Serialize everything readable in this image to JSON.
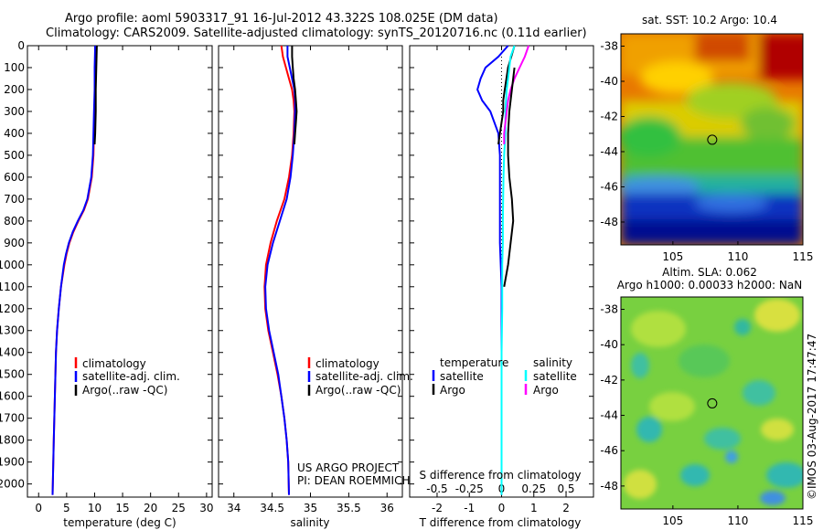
{
  "header": {
    "line1": "Argo profile: aoml 5903317_91 16-Jul-2012 43.322S 108.025E (DM data)",
    "line2": "Climatology: CARS2009. Satellite-adjusted climatology: synTS_20120716.nc (0.11d earlier)"
  },
  "colors": {
    "climatology": "#ff0000",
    "satellite": "#0000ff",
    "argo": "#000000",
    "s_satellite": "#00ffff",
    "s_argo": "#ff00ff"
  },
  "chart_data": [
    {
      "id": "temperature",
      "type": "line",
      "xlabel": "temperature (deg C)",
      "ylim": [
        2060,
        0
      ],
      "xlim": [
        -2,
        31
      ],
      "x_ticks": [
        "0",
        "5",
        "10",
        "15",
        "20",
        "25",
        "30"
      ],
      "y_ticks": [
        "0",
        "100",
        "200",
        "300",
        "400",
        "500",
        "600",
        "700",
        "800",
        "900",
        "1000",
        "1100",
        "1200",
        "1300",
        "1400",
        "1500",
        "1600",
        "1700",
        "1800",
        "1900",
        "2000"
      ],
      "legend": [
        "climatology",
        "satellite-adj. clim.",
        "Argo(..raw -QC)"
      ],
      "series": [
        {
          "name": "climatology",
          "color": "#ff0000",
          "depth": [
            0,
            100,
            200,
            300,
            400,
            500,
            600,
            700,
            750,
            800,
            850,
            900,
            950,
            1000,
            1100,
            1200,
            1300,
            1400,
            1500,
            1600,
            1800,
            2050
          ],
          "values": [
            10.3,
            10.2,
            10.1,
            10.0,
            9.9,
            9.8,
            9.5,
            8.8,
            8.1,
            7.1,
            6.2,
            5.5,
            5.0,
            4.6,
            4.0,
            3.6,
            3.3,
            3.1,
            3.0,
            2.9,
            2.7,
            2.5
          ]
        },
        {
          "name": "satellite-adj. clim.",
          "color": "#0000ff",
          "depth": [
            0,
            100,
            200,
            300,
            400,
            500,
            600,
            700,
            750,
            800,
            850,
            900,
            950,
            1000,
            1100,
            1200,
            1300,
            1400,
            1500,
            1600,
            1800,
            2050
          ],
          "values": [
            10.1,
            10.0,
            10.0,
            9.9,
            9.8,
            9.7,
            9.4,
            8.7,
            8.0,
            7.0,
            6.1,
            5.4,
            4.9,
            4.5,
            4.0,
            3.6,
            3.3,
            3.1,
            3.0,
            2.9,
            2.7,
            2.5
          ]
        },
        {
          "name": "Argo(..raw -QC)",
          "color": "#000000",
          "depth": [
            0,
            100,
            200,
            300,
            400,
            450
          ],
          "values": [
            10.4,
            10.3,
            10.2,
            10.2,
            10.1,
            10.0
          ]
        }
      ]
    },
    {
      "id": "salinity",
      "type": "line",
      "xlabel": "salinity",
      "ylim": [
        2060,
        0
      ],
      "xlim": [
        33.8,
        36.2
      ],
      "x_ticks": [
        "34",
        "34.5",
        "35",
        "35.5",
        "36"
      ],
      "legend": [
        "climatology",
        "satellite-adj. clim.",
        "Argo(..raw -QC)"
      ],
      "annotation": [
        "US ARGO PROJECT",
        "PI: DEAN ROEMMICH"
      ],
      "series": [
        {
          "name": "climatology",
          "color": "#ff0000",
          "depth": [
            0,
            50,
            100,
            150,
            200,
            250,
            300,
            400,
            500,
            600,
            700,
            800,
            900,
            1000,
            1100,
            1200,
            1300,
            1400,
            1500,
            1600,
            1700,
            1800,
            1900,
            2050
          ],
          "values": [
            34.62,
            34.64,
            34.68,
            34.72,
            34.76,
            34.78,
            34.79,
            34.78,
            34.76,
            34.72,
            34.66,
            34.56,
            34.48,
            34.42,
            34.4,
            34.41,
            34.45,
            34.51,
            34.57,
            34.62,
            34.66,
            34.69,
            34.71,
            34.72
          ]
        },
        {
          "name": "satellite-adj. clim.",
          "color": "#0000ff",
          "depth": [
            0,
            50,
            100,
            150,
            200,
            250,
            300,
            400,
            500,
            600,
            700,
            800,
            900,
            1000,
            1100,
            1200,
            1300,
            1400,
            1500,
            1600,
            1700,
            1800,
            1900,
            2050
          ],
          "values": [
            34.7,
            34.7,
            34.73,
            34.76,
            34.79,
            34.8,
            34.8,
            34.79,
            34.77,
            34.74,
            34.69,
            34.6,
            34.51,
            34.44,
            34.41,
            34.42,
            34.46,
            34.52,
            34.58,
            34.62,
            34.66,
            34.69,
            34.71,
            34.72
          ]
        },
        {
          "name": "Argo(..raw -QC)",
          "color": "#000000",
          "depth": [
            0,
            50,
            100,
            150,
            200,
            250,
            300,
            350,
            400,
            450
          ],
          "values": [
            34.76,
            34.76,
            34.77,
            34.78,
            34.8,
            34.81,
            34.82,
            34.81,
            34.8,
            34.79
          ]
        }
      ]
    },
    {
      "id": "difference",
      "type": "line",
      "xlabel": "T difference from climatology",
      "xlabel2": "S difference from climatology",
      "ylim": [
        2060,
        0
      ],
      "xlim": [
        -2.85,
        2.85
      ],
      "x_ticks": [
        "-2",
        "-1",
        "0",
        "1",
        "2"
      ],
      "x2_ticks": [
        "-0.5",
        "-0.25",
        "0",
        "0.25",
        "0.5"
      ],
      "legend_temperature": [
        "temperature",
        "satellite",
        "Argo"
      ],
      "legend_salinity": [
        "salinity",
        "satellite",
        "Argo"
      ],
      "series": [
        {
          "name": "T satellite",
          "color": "#0000ff",
          "depth": [
            0,
            50,
            100,
            150,
            200,
            250,
            300,
            400,
            500,
            700,
            900,
            1100,
            1300,
            1500,
            1700,
            1900,
            2050
          ],
          "values": [
            0.2,
            -0.1,
            -0.5,
            -0.65,
            -0.75,
            -0.6,
            -0.35,
            -0.1,
            -0.05,
            -0.05,
            -0.05,
            0,
            0,
            0,
            0,
            0,
            0
          ]
        },
        {
          "name": "T Argo",
          "color": "#000000",
          "depth": [
            0,
            50,
            100,
            150,
            200,
            250,
            300,
            350,
            400,
            450
          ],
          "values": [
            0.4,
            0.3,
            0.2,
            0.15,
            0.1,
            0.05,
            0.05,
            0,
            -0.05,
            -0.1
          ]
        },
        {
          "name": "S satellite",
          "color": "#00ffff",
          "depth": [
            0,
            50,
            100,
            150,
            200,
            300,
            400,
            500,
            600,
            700,
            800,
            900,
            1000,
            1200,
            1400,
            1600,
            1800,
            2050
          ],
          "values": [
            0.1,
            0.07,
            0.06,
            0.05,
            0.04,
            0.03,
            0.03,
            0.02,
            0.015,
            0.012,
            0.01,
            0.01,
            0.005,
            0.005,
            0,
            0,
            0,
            0
          ]
        },
        {
          "name": "S Argo",
          "color": "#ff00ff",
          "depth": [
            0,
            50,
            100,
            150,
            200,
            250,
            300,
            350,
            400,
            450
          ],
          "values": [
            0.21,
            0.18,
            0.14,
            0.1,
            0.07,
            0.05,
            0.04,
            0.03,
            0.02,
            0.02
          ]
        },
        {
          "name": "S climatology diff",
          "color": "#000000",
          "depth": [
            100,
            200,
            300,
            400,
            500,
            600,
            700,
            800,
            900,
            1000,
            1100
          ],
          "values": [
            0.1,
            0.08,
            0.06,
            0.05,
            0.05,
            0.06,
            0.08,
            0.09,
            0.07,
            0.05,
            0.02
          ]
        }
      ]
    },
    {
      "id": "sst_map",
      "type": "heatmap",
      "title": "sat. SST: 10.2  Argo: 10.4",
      "xlim": [
        101,
        115
      ],
      "ylim": [
        -49.3,
        -37.3
      ],
      "x_ticks": [
        "105",
        "110",
        "115"
      ],
      "y_ticks": [
        "-38",
        "-40",
        "-42",
        "-44",
        "-46",
        "-48"
      ],
      "marker": {
        "lon": 108.025,
        "lat": -43.322
      }
    },
    {
      "id": "sla_map",
      "type": "heatmap",
      "title": "Altim. SLA: 0.062",
      "subtitle": "Argo h1000: 0.00033  h2000: NaN",
      "xlim": [
        101,
        115
      ],
      "ylim": [
        -49.3,
        -37.3
      ],
      "x_ticks": [
        "105",
        "110",
        "115"
      ],
      "y_ticks": [
        "-38",
        "-40",
        "-42",
        "-44",
        "-46",
        "-48"
      ],
      "marker": {
        "lon": 108.025,
        "lat": -43.322
      }
    }
  ],
  "footer": {
    "credit": "©IMOS 03-Aug-2017 17:47:47"
  }
}
